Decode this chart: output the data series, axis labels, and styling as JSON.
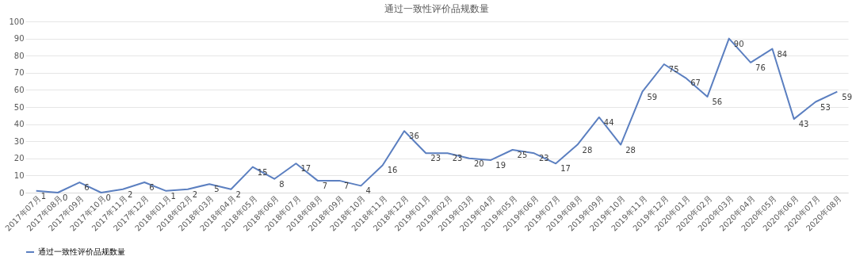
{
  "chart_data": {
    "type": "line",
    "title": "通过一致性评价品规数量",
    "categories": [
      "2017年07月",
      "2017年08月",
      "2017年09月",
      "2017年10月",
      "2017年11月",
      "2017年12月",
      "2018年01月",
      "2018年02月",
      "2018年03月",
      "2018年04月",
      "2018年05月",
      "2018年06月",
      "2018年07月",
      "2018年08月",
      "2018年09月",
      "2018年10月",
      "2018年11月",
      "2018年12月",
      "2019年01月",
      "2019年02月",
      "2019年03月",
      "2019年04月",
      "2019年05月",
      "2019年06月",
      "2019年07月",
      "2019年08月",
      "2019年09月",
      "2019年10月",
      "2019年11月",
      "2019年12月",
      "2020年01月",
      "2020年02月",
      "2020年03月",
      "2020年04月",
      "2020年05月",
      "2020年06月",
      "2020年07月",
      "2020年08月"
    ],
    "series": [
      {
        "name": "通过一致性评价品规数量",
        "color": "#5b7fc0",
        "values": [
          1,
          0,
          6,
          0,
          2,
          6,
          1,
          2,
          5,
          2,
          15,
          8,
          17,
          7,
          7,
          4,
          16,
          36,
          23,
          23,
          20,
          19,
          25,
          23,
          17,
          28,
          44,
          28,
          59,
          75,
          67,
          56,
          90,
          76,
          84,
          43,
          53,
          59
        ]
      }
    ],
    "ylim": [
      0,
      100
    ],
    "yticks": [
      0,
      10,
      20,
      30,
      40,
      50,
      60,
      70,
      80,
      90,
      100
    ],
    "grid": "y",
    "legend": "bottom",
    "data_labels": true,
    "marker": "none",
    "line_style": "solid"
  }
}
